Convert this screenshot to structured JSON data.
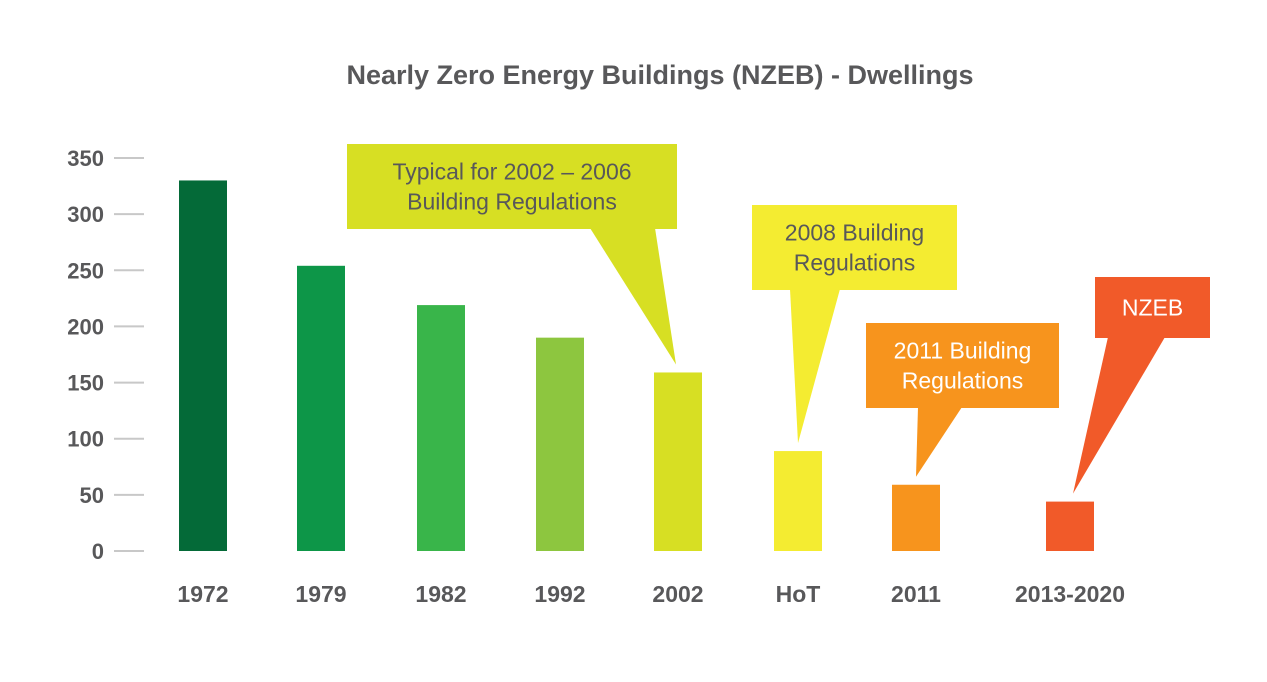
{
  "chart_data": {
    "type": "bar",
    "title": "Nearly Zero Energy Buildings (NZEB) - Dwellings",
    "xlabel": "",
    "ylabel": "",
    "ylim": [
      0,
      350
    ],
    "yticks": [
      "0",
      "50",
      "100",
      "150",
      "200",
      "250",
      "300",
      "350"
    ],
    "grid": false,
    "categories": [
      "1972",
      "1979",
      "1982",
      "1992",
      "2002",
      "HoT",
      "2011",
      "2013-2020"
    ],
    "values": [
      330,
      254,
      219,
      190,
      159,
      89,
      59,
      44
    ],
    "colors": [
      "#046a38",
      "#0d9648",
      "#39b54a",
      "#8dc63f",
      "#d7df23",
      "#f4ec31",
      "#f7941d",
      "#f15a29"
    ],
    "annotations": [
      {
        "lines": [
          "Typical for 2002 – 2006",
          "Building Regulations"
        ],
        "target": "2002",
        "color": "#d7df23",
        "text_color": "#58585a"
      },
      {
        "lines": [
          "2008 Building",
          "Regulations"
        ],
        "target": "HoT",
        "color": "#f4ec31",
        "text_color": "#58585a"
      },
      {
        "lines": [
          "2011 Building",
          "Regulations"
        ],
        "target": "2011",
        "color": "#f7941d",
        "text_color": "#ffffff"
      },
      {
        "lines": [
          "NZEB"
        ],
        "target": "2013-2020",
        "color": "#f15a29",
        "text_color": "#ffffff"
      }
    ]
  }
}
